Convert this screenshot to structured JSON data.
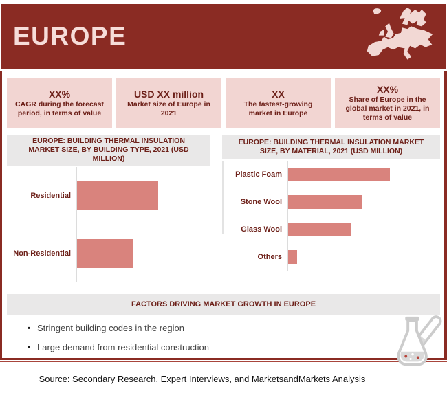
{
  "header": {
    "title": "EUROPE"
  },
  "stats": [
    {
      "value": "XX%",
      "label": "CAGR during the forecast period, in terms of value"
    },
    {
      "value": "USD XX million",
      "label": "Market size of Europe in 2021"
    },
    {
      "value": "XX",
      "label": "The fastest-growing market in Europe"
    },
    {
      "value": "XX%",
      "label": "Share of Europe in the global market in 2021, in terms of value"
    }
  ],
  "chart_data": [
    {
      "type": "bar",
      "orientation": "horizontal",
      "title": "EUROPE: BUILDING THERMAL INSULATION MARKET SIZE, BY BUILDING TYPE, 2021 (USD MILLION)",
      "categories": [
        "Residential",
        "Non-Residential"
      ],
      "values_relative_pct": [
        100,
        69.5
      ],
      "value_labels_shown": false,
      "note": "Numeric values are redacted (XX) in source; bar lengths given as % of longest bar",
      "bar_color": "#d9837d",
      "grid": false,
      "legend": false
    },
    {
      "type": "bar",
      "orientation": "horizontal",
      "title": "EUROPE: BUILDING THERMAL INSULATION MARKET SIZE, BY MATERIAL, 2021 (USD MILLION)",
      "categories": [
        "Plastic Foam",
        "Stone Wool",
        "Glass Wool",
        "Others"
      ],
      "values_relative_pct": [
        100,
        72.3,
        61.5,
        8.8
      ],
      "value_labels_shown": false,
      "note": "Numeric values are redacted (XX) in source; bar lengths given as % of longest bar",
      "bar_color": "#d9837d",
      "grid": false,
      "legend": false
    }
  ],
  "factors": {
    "title": "FACTORS DRIVING MARKET GROWTH IN EUROPE",
    "items": [
      "Stringent building codes in the region",
      "Large demand from residential construction"
    ]
  },
  "source": "Source: Secondary Research, Expert Interviews, and MarketsandMarkets Analysis",
  "icons": {
    "header_map": "europe-map-icon",
    "footer": "lab-flask-icon"
  },
  "colors": {
    "header_bg": "#8a2b23",
    "panel_pink": "#f2d5d2",
    "maroon_text": "#6d2019",
    "section_gray": "#e9e8e8",
    "bar": "#d9837d",
    "border_red": "#8a2b23"
  }
}
